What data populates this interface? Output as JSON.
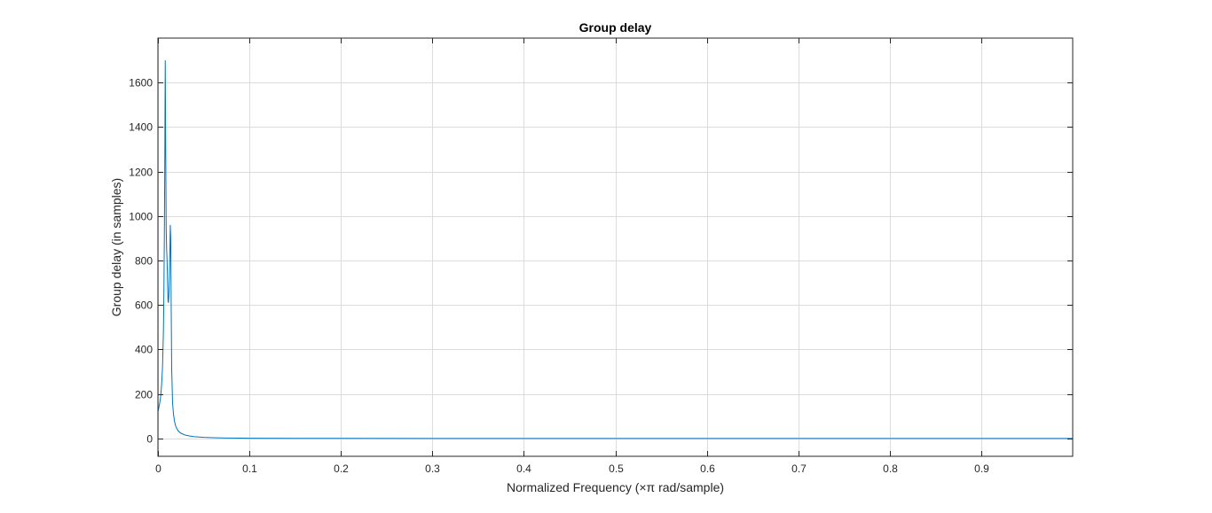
{
  "chart_data": {
    "type": "line",
    "title": "Group delay",
    "xlabel": "Normalized Frequency (×π rad/sample)",
    "ylabel": "Group delay (in samples)",
    "xlim": [
      0,
      1
    ],
    "ylim": [
      -80,
      1800
    ],
    "xticks": [
      0,
      0.1,
      0.2,
      0.3,
      0.4,
      0.5,
      0.6,
      0.7,
      0.8,
      0.9
    ],
    "xtick_labels": [
      "0",
      "0.1",
      "0.2",
      "0.3",
      "0.4",
      "0.5",
      "0.6",
      "0.7",
      "0.8",
      "0.9"
    ],
    "yticks": [
      0,
      200,
      400,
      600,
      800,
      1000,
      1200,
      1400,
      1600
    ],
    "ytick_labels": [
      "0",
      "200",
      "400",
      "600",
      "800",
      "1000",
      "1200",
      "1400",
      "1600"
    ],
    "grid": true,
    "line_color": "#0072bd",
    "grid_color": "#dcdcdc",
    "series": [
      {
        "x": [
          0,
          0.001,
          0.002,
          0.003,
          0.004,
          0.005,
          0.006,
          0.0065,
          0.007,
          0.0075,
          0.008,
          0.0085,
          0.009,
          0.0095,
          0.01,
          0.0105,
          0.011,
          0.0115,
          0.012,
          0.0125,
          0.013,
          0.0135,
          0.014,
          0.0145,
          0.015,
          0.016,
          0.017,
          0.018,
          0.019,
          0.02,
          0.022,
          0.025,
          0.03,
          0.035,
          0.04,
          0.05,
          0.06,
          0.07,
          0.08,
          0.09,
          0.1,
          0.15,
          0.2,
          0.3,
          0.4,
          0.5,
          0.6,
          0.7,
          0.8,
          0.9,
          1.0
        ],
        "y": [
          120,
          140,
          160,
          190,
          240,
          320,
          480,
          650,
          900,
          1250,
          1700,
          1300,
          950,
          850,
          800,
          700,
          620,
          610,
          650,
          720,
          820,
          960,
          900,
          600,
          320,
          160,
          110,
          80,
          62,
          50,
          35,
          24,
          15,
          11,
          8,
          5,
          3.5,
          2.5,
          2,
          1.6,
          1.3,
          0.8,
          0.5,
          0.3,
          0.2,
          0.15,
          0.12,
          0.1,
          0.08,
          0.07,
          0.06
        ]
      }
    ]
  }
}
